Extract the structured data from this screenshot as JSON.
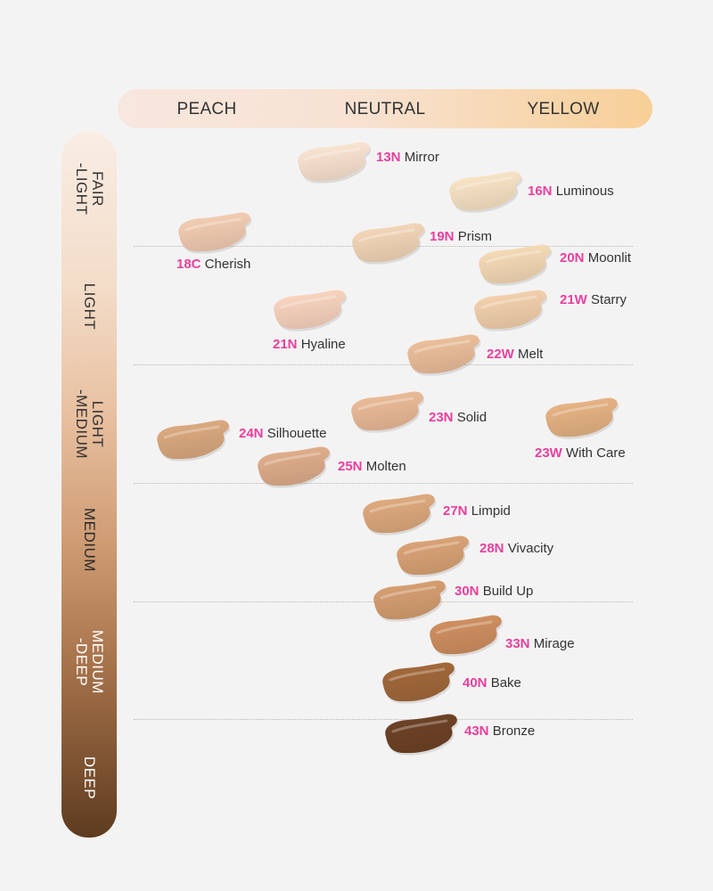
{
  "undertones": [
    "PEACH",
    "NEUTRAL",
    "YELLOW"
  ],
  "depths": [
    "FAIR\n-LIGHT",
    "LIGHT",
    "LIGHT\n-MEDIUM",
    "MEDIUM",
    "MEDIUM\n-DEEP",
    "DEEP"
  ],
  "shades": [
    {
      "code": "13N",
      "name": "Mirror",
      "color": "#f3dccb"
    },
    {
      "code": "16N",
      "name": "Luminous",
      "color": "#f1dcbf"
    },
    {
      "code": "18C",
      "name": "Cherish",
      "color": "#ebc6ad"
    },
    {
      "code": "19N",
      "name": "Prism",
      "color": "#eccfb3"
    },
    {
      "code": "20N",
      "name": "Moonlit",
      "color": "#eed3b0"
    },
    {
      "code": "21W",
      "name": "Starry",
      "color": "#eccaa7"
    },
    {
      "code": "21N",
      "name": "Hyaline",
      "color": "#f1cdb9"
    },
    {
      "code": "22W",
      "name": "Melt",
      "color": "#e4b996"
    },
    {
      "code": "23N",
      "name": "Solid",
      "color": "#e3b593"
    },
    {
      "code": "23W",
      "name": "With Care",
      "color": "#dfae80"
    },
    {
      "code": "24N",
      "name": "Silhouette",
      "color": "#d4a47c"
    },
    {
      "code": "25N",
      "name": "Molten",
      "color": "#d8a887"
    },
    {
      "code": "27N",
      "name": "Limpid",
      "color": "#d7a47a"
    },
    {
      "code": "28N",
      "name": "Vivacity",
      "color": "#d39e72"
    },
    {
      "code": "30N",
      "name": "Build Up",
      "color": "#cf9a6e"
    },
    {
      "code": "33N",
      "name": "Mirage",
      "color": "#c98b5d"
    },
    {
      "code": "40N",
      "name": "Bake",
      "color": "#9d6539"
    },
    {
      "code": "43N",
      "name": "Bronze",
      "color": "#6a4025"
    }
  ]
}
